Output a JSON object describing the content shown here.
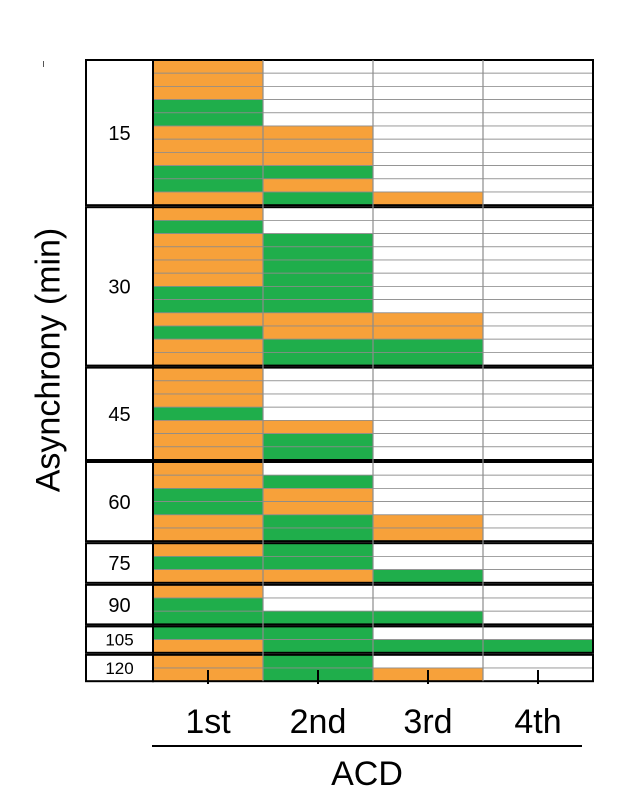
{
  "chart_data": {
    "type": "heatmap",
    "title": "",
    "xlabel": "ACD",
    "ylabel": "Asynchrony (min)",
    "x_categories": [
      "1st",
      "2nd",
      "3rd",
      "4th"
    ],
    "legend": [],
    "colors": {
      "orange": "#F7A13A",
      "green": "#1FAE4B",
      "empty": "#FFFFFF",
      "row_line": "#8C8C8C",
      "group_border": "#000000"
    },
    "groups": [
      {
        "label": "15",
        "rows": [
          [
            "O",
            "E",
            "E",
            "E"
          ],
          [
            "O",
            "E",
            "E",
            "E"
          ],
          [
            "O",
            "E",
            "E",
            "E"
          ],
          [
            "G",
            "E",
            "E",
            "E"
          ],
          [
            "G",
            "E",
            "E",
            "E"
          ],
          [
            "O",
            "O",
            "E",
            "E"
          ],
          [
            "O",
            "O",
            "E",
            "E"
          ],
          [
            "O",
            "O",
            "E",
            "E"
          ],
          [
            "G",
            "G",
            "E",
            "E"
          ],
          [
            "G",
            "O",
            "E",
            "E"
          ],
          [
            "O",
            "G",
            "O",
            "E"
          ]
        ]
      },
      {
        "label": "30",
        "rows": [
          [
            "O",
            "E",
            "E",
            "E"
          ],
          [
            "G",
            "E",
            "E",
            "E"
          ],
          [
            "O",
            "G",
            "E",
            "E"
          ],
          [
            "O",
            "G",
            "E",
            "E"
          ],
          [
            "O",
            "G",
            "E",
            "E"
          ],
          [
            "O",
            "G",
            "E",
            "E"
          ],
          [
            "G",
            "G",
            "E",
            "E"
          ],
          [
            "G",
            "G",
            "E",
            "E"
          ],
          [
            "O",
            "O",
            "O",
            "E"
          ],
          [
            "G",
            "O",
            "O",
            "E"
          ],
          [
            "O",
            "G",
            "G",
            "E"
          ],
          [
            "O",
            "G",
            "G",
            "E"
          ]
        ]
      },
      {
        "label": "45",
        "rows": [
          [
            "O",
            "E",
            "E",
            "E"
          ],
          [
            "O",
            "E",
            "E",
            "E"
          ],
          [
            "O",
            "E",
            "E",
            "E"
          ],
          [
            "G",
            "E",
            "E",
            "E"
          ],
          [
            "O",
            "O",
            "E",
            "E"
          ],
          [
            "O",
            "G",
            "E",
            "E"
          ],
          [
            "O",
            "G",
            "E",
            "E"
          ]
        ]
      },
      {
        "label": "60",
        "rows": [
          [
            "O",
            "E",
            "E",
            "E"
          ],
          [
            "O",
            "G",
            "E",
            "E"
          ],
          [
            "G",
            "O",
            "E",
            "E"
          ],
          [
            "G",
            "O",
            "E",
            "E"
          ],
          [
            "O",
            "G",
            "O",
            "E"
          ],
          [
            "O",
            "G",
            "O",
            "E"
          ]
        ]
      },
      {
        "label": "75",
        "rows": [
          [
            "O",
            "G",
            "E",
            "E"
          ],
          [
            "G",
            "G",
            "E",
            "E"
          ],
          [
            "O",
            "O",
            "G",
            "E"
          ]
        ]
      },
      {
        "label": "90",
        "rows": [
          [
            "O",
            "E",
            "E",
            "E"
          ],
          [
            "G",
            "E",
            "E",
            "E"
          ],
          [
            "G",
            "G",
            "G",
            "E"
          ]
        ]
      },
      {
        "label": "105",
        "rows": [
          [
            "G",
            "G",
            "E",
            "E"
          ],
          [
            "O",
            "G",
            "G",
            "G"
          ]
        ]
      },
      {
        "label": "120",
        "rows": [
          [
            "O",
            "G",
            "E",
            "E"
          ],
          [
            "O",
            "G",
            "O",
            "E"
          ]
        ]
      }
    ]
  }
}
